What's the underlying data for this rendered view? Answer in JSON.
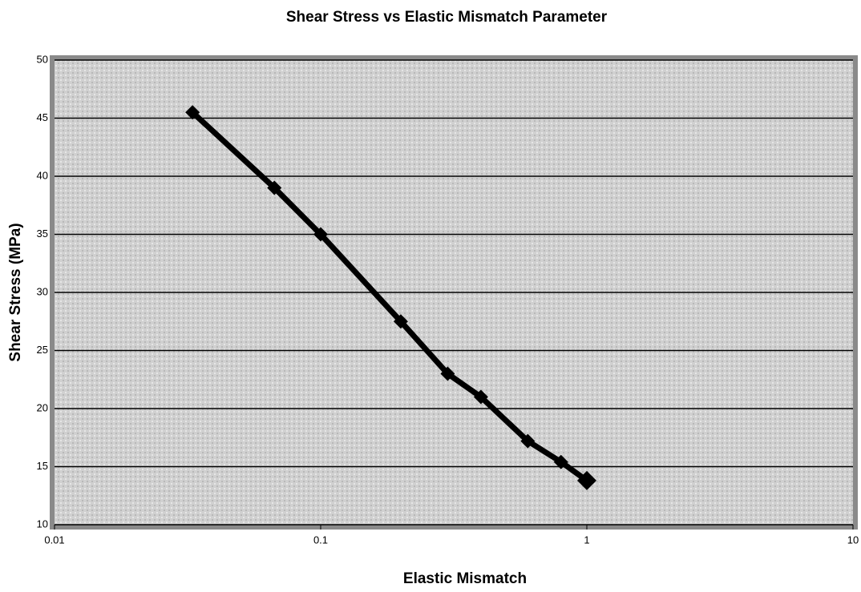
{
  "chart_data": {
    "type": "line",
    "title": "Shear Stress vs Elastic Mismatch Parameter",
    "x_label": "Elastic Mismatch",
    "y_label": "Shear Stress (MPa)",
    "x": [
      0.033,
      0.067,
      0.1,
      0.2,
      0.3,
      0.4,
      0.6,
      0.8,
      1
    ],
    "series": [
      {
        "name": "Shear Stress",
        "color": "#000000",
        "values": [
          45.5,
          39,
          35,
          27.5,
          23,
          21,
          17.2,
          15.4,
          13.8
        ]
      }
    ],
    "x_log": true,
    "xlim": [
      0.01,
      10
    ],
    "xticks": [
      0.01,
      0.1,
      1,
      10
    ],
    "ylim": [
      10,
      50
    ],
    "yticks": [
      10,
      15,
      20,
      25,
      30,
      35,
      40,
      45,
      50
    ],
    "grid": true
  }
}
